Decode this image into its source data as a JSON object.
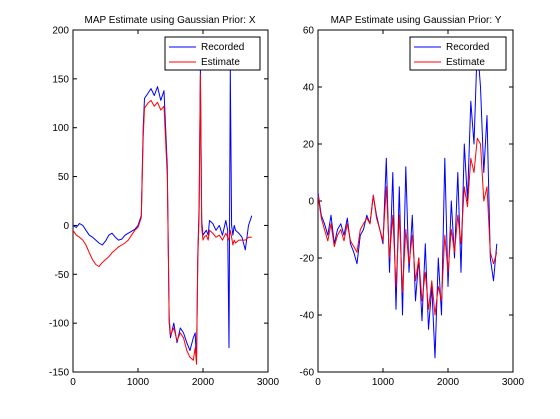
{
  "chart_data": [
    {
      "type": "line",
      "title": "MAP Estimate using Gaussian Prior: X",
      "xlabel": "",
      "ylabel": "",
      "xlim": [
        0,
        3000
      ],
      "ylim": [
        -150,
        200
      ],
      "xticks": [
        0,
        1000,
        2000,
        3000
      ],
      "yticks": [
        -150,
        -100,
        -50,
        0,
        50,
        100,
        150,
        200
      ],
      "grid": false,
      "legend_position": "top-right",
      "series": [
        {
          "name": "Recorded",
          "color": "#0000ff",
          "x": [
            0,
            50,
            100,
            150,
            200,
            250,
            300,
            350,
            400,
            450,
            500,
            550,
            600,
            650,
            700,
            750,
            800,
            850,
            900,
            950,
            1000,
            1050,
            1080,
            1100,
            1150,
            1200,
            1250,
            1300,
            1350,
            1400,
            1450,
            1480,
            1500,
            1550,
            1600,
            1650,
            1700,
            1750,
            1800,
            1850,
            1880,
            1900,
            1920,
            1940,
            1960,
            1980,
            2000,
            2020,
            2050,
            2080,
            2100,
            2150,
            2200,
            2250,
            2300,
            2350,
            2380,
            2400,
            2420,
            2440,
            2460,
            2480,
            2500,
            2550,
            2600,
            2650,
            2700,
            2750
          ],
          "values": [
            0,
            -2,
            2,
            0,
            -5,
            -10,
            -12,
            -15,
            -18,
            -20,
            -16,
            -10,
            -8,
            -12,
            -15,
            -14,
            -10,
            -8,
            -6,
            -4,
            0,
            10,
            100,
            130,
            135,
            140,
            133,
            142,
            128,
            138,
            60,
            -100,
            -115,
            -100,
            -120,
            -105,
            -110,
            -120,
            -128,
            -115,
            -110,
            -140,
            -30,
            20,
            160,
            5,
            -10,
            -8,
            -5,
            -10,
            5,
            2,
            -5,
            0,
            -10,
            5,
            -5,
            -125,
            160,
            0,
            -10,
            0,
            -5,
            -8,
            -12,
            -25,
            0,
            10
          ]
        },
        {
          "name": "Estimate",
          "color": "#ff0000",
          "x": [
            0,
            50,
            100,
            150,
            200,
            250,
            300,
            350,
            400,
            450,
            500,
            550,
            600,
            650,
            700,
            750,
            800,
            850,
            900,
            950,
            1000,
            1050,
            1080,
            1100,
            1150,
            1200,
            1250,
            1300,
            1350,
            1400,
            1450,
            1480,
            1500,
            1550,
            1600,
            1650,
            1700,
            1750,
            1800,
            1850,
            1880,
            1900,
            1920,
            1940,
            1960,
            1980,
            2000,
            2020,
            2050,
            2080,
            2100,
            2150,
            2200,
            2250,
            2300,
            2350,
            2380,
            2400,
            2420,
            2440,
            2460,
            2480,
            2500,
            2550,
            2600,
            2650,
            2700,
            2750
          ],
          "values": [
            -5,
            -10,
            -12,
            -15,
            -20,
            -28,
            -35,
            -40,
            -42,
            -38,
            -35,
            -32,
            -28,
            -25,
            -22,
            -20,
            -18,
            -15,
            -10,
            -5,
            -2,
            8,
            90,
            120,
            125,
            128,
            122,
            126,
            118,
            122,
            50,
            -95,
            -112,
            -105,
            -118,
            -110,
            -115,
            -128,
            -135,
            -138,
            -125,
            -142,
            -35,
            10,
            155,
            -2,
            -15,
            -12,
            -10,
            -15,
            -5,
            -8,
            -12,
            -10,
            -15,
            -8,
            -12,
            -15,
            -5,
            -12,
            -20,
            -15,
            -18,
            -15,
            -15,
            -15,
            -12,
            -12
          ]
        }
      ]
    },
    {
      "type": "line",
      "title": "MAP Estimate using Gaussian Prior: Y",
      "xlabel": "",
      "ylabel": "",
      "xlim": [
        0,
        3000
      ],
      "ylim": [
        -60,
        60
      ],
      "xticks": [
        0,
        1000,
        2000,
        3000
      ],
      "yticks": [
        -60,
        -40,
        -20,
        0,
        20,
        40,
        60
      ],
      "grid": false,
      "legend_position": "top-right",
      "series": [
        {
          "name": "Recorded",
          "color": "#0000ff",
          "x": [
            0,
            50,
            100,
            150,
            200,
            250,
            300,
            350,
            400,
            450,
            500,
            550,
            600,
            650,
            700,
            750,
            800,
            850,
            900,
            950,
            1000,
            1050,
            1100,
            1150,
            1200,
            1250,
            1300,
            1350,
            1400,
            1450,
            1500,
            1550,
            1600,
            1650,
            1700,
            1750,
            1800,
            1850,
            1900,
            1950,
            2000,
            2050,
            2100,
            2150,
            2200,
            2250,
            2300,
            2350,
            2400,
            2450,
            2500,
            2550,
            2600,
            2650,
            2700,
            2750
          ],
          "values": [
            3,
            -5,
            -8,
            -12,
            -5,
            -15,
            -10,
            -8,
            -12,
            -6,
            -15,
            -18,
            -22,
            -12,
            -10,
            -5,
            -8,
            2,
            -5,
            -10,
            -15,
            15,
            -25,
            10,
            -38,
            5,
            -40,
            12,
            -25,
            -5,
            -35,
            -20,
            -42,
            -15,
            -45,
            -30,
            -55,
            -20,
            -40,
            15,
            -30,
            0,
            -20,
            10,
            -25,
            20,
            0,
            35,
            20,
            55,
            40,
            10,
            30,
            -20,
            -28,
            -15
          ]
        },
        {
          "name": "Estimate",
          "color": "#ff0000",
          "x": [
            0,
            50,
            100,
            150,
            200,
            250,
            300,
            350,
            400,
            450,
            500,
            550,
            600,
            650,
            700,
            750,
            800,
            850,
            900,
            950,
            1000,
            1050,
            1100,
            1150,
            1200,
            1250,
            1300,
            1350,
            1400,
            1450,
            1500,
            1550,
            1600,
            1650,
            1700,
            1750,
            1800,
            1850,
            1900,
            1950,
            2000,
            2050,
            2100,
            2150,
            2200,
            2250,
            2300,
            2350,
            2400,
            2450,
            2500,
            2550,
            2600,
            2650,
            2700,
            2750
          ],
          "values": [
            2,
            -6,
            -10,
            -14,
            -8,
            -16,
            -12,
            -10,
            -14,
            -8,
            -14,
            -16,
            -18,
            -10,
            -8,
            -6,
            -8,
            2,
            -6,
            -10,
            -14,
            5,
            -20,
            -5,
            -30,
            -5,
            -32,
            -10,
            -22,
            -12,
            -28,
            -20,
            -35,
            -25,
            -38,
            -28,
            -40,
            -30,
            -35,
            -12,
            -25,
            -10,
            -18,
            -5,
            -15,
            5,
            -2,
            15,
            10,
            22,
            20,
            0,
            5,
            -18,
            -22,
            -18
          ]
        }
      ]
    }
  ]
}
